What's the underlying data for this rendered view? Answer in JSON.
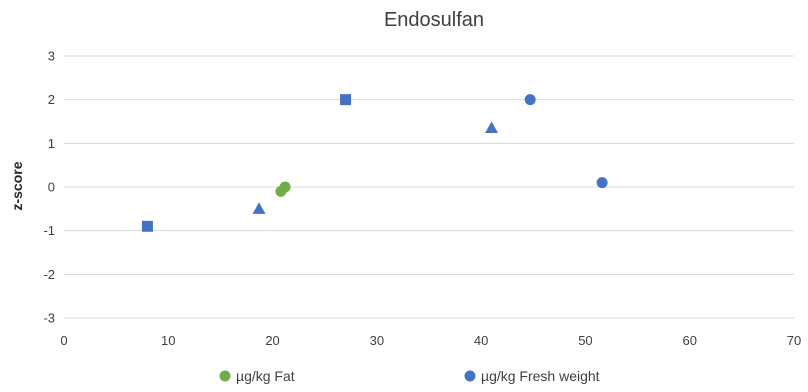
{
  "chart_data": {
    "type": "scatter",
    "title": "Endosulfan",
    "xlabel": "",
    "ylabel": "z-score",
    "xlim": [
      0,
      70
    ],
    "ylim": [
      -3,
      3
    ],
    "x_ticks": [
      0,
      10,
      20,
      30,
      40,
      50,
      60,
      70
    ],
    "y_ticks": [
      3,
      2,
      1,
      0,
      -1,
      -2,
      -3
    ],
    "grid": "horizontal",
    "legend_position": "bottom",
    "legend": [
      {
        "name": "µg/kg Fat",
        "color": "#70ad47",
        "marker": "circle"
      },
      {
        "name": "µg/kg Fresh weight",
        "color": "#4472c4",
        "marker": "circle"
      }
    ],
    "points": [
      {
        "x": 8,
        "y": -0.9,
        "marker": "square",
        "color": "#4472c4"
      },
      {
        "x": 27,
        "y": 2.0,
        "marker": "square",
        "color": "#4472c4"
      },
      {
        "x": 18.7,
        "y": -0.5,
        "marker": "triangle",
        "color": "#4472c4"
      },
      {
        "x": 41,
        "y": 1.35,
        "marker": "triangle",
        "color": "#4472c4"
      },
      {
        "x": 44.7,
        "y": 2.0,
        "marker": "circle",
        "color": "#4472c4"
      },
      {
        "x": 51.6,
        "y": 0.1,
        "marker": "circle",
        "color": "#4472c4"
      },
      {
        "x": 20.8,
        "y": -0.1,
        "marker": "circle",
        "color": "#70ad47"
      },
      {
        "x": 21.2,
        "y": 0.0,
        "marker": "circle",
        "color": "#70ad47"
      }
    ]
  }
}
